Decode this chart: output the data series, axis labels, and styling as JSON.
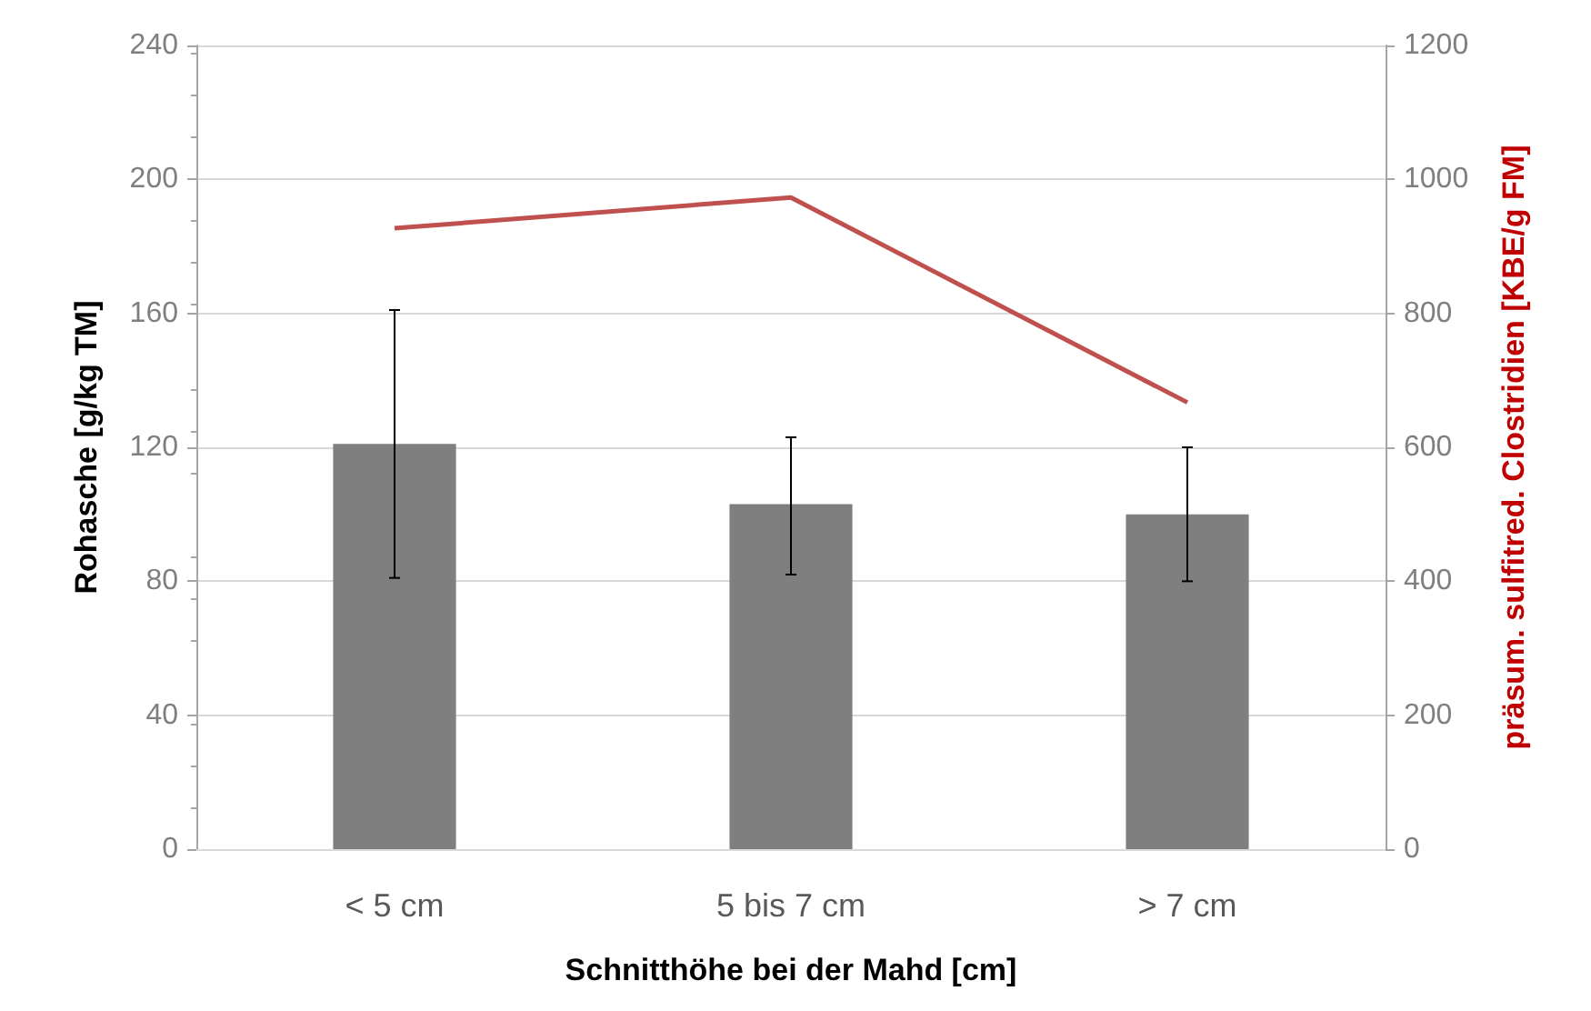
{
  "chart_data": {
    "type": "bar",
    "xlabel": "Schnitthöhe bei der Mahd [cm]",
    "ylabel": "Rohasche [g/kg TM]",
    "y2label": "präsum. sulfitred. Clostridien [KBE/g FM]",
    "categories": [
      "< 5 cm",
      "5 bis 7 cm",
      "> 7 cm"
    ],
    "series": [
      {
        "color": "#7f7f7f",
        "values": [
          121,
          103,
          100
        ],
        "errors": [
          [
            81,
            161
          ],
          [
            82,
            123
          ],
          [
            80,
            120
          ]
        ]
      },
      {
        "type": "line",
        "axis": "y2",
        "color": "#c0504d",
        "values": [
          927,
          973,
          667
        ],
        "marker": "none"
      }
    ],
    "ylim": [
      0,
      240
    ],
    "yticks": [
      0,
      40,
      80,
      120,
      160,
      200,
      240
    ],
    "y2lim": [
      0,
      1200
    ],
    "y2ticks": [
      0,
      200,
      400,
      600,
      800,
      1000,
      1200
    ],
    "grid": "y"
  }
}
